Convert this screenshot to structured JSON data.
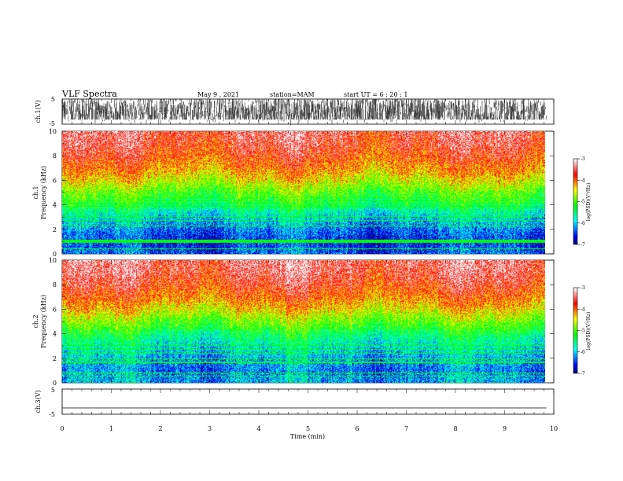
{
  "header": {
    "title": "VLF Spectra",
    "date": "May 9 , 2021",
    "station": "station=MAM",
    "start": "start  UT  =   6 : 20 : 1"
  },
  "chart_data": {
    "type": "heatmap",
    "xlabel": "Time  (min)",
    "x_ticks": [
      "0",
      "1",
      "2",
      "3",
      "4",
      "5",
      "6",
      "7",
      "8",
      "9",
      "10"
    ],
    "xlim": [
      0,
      10
    ],
    "data_end_min": 9.85,
    "panels": [
      {
        "id": "ch1_waveform",
        "type": "line",
        "ylabel": "ch.1(V)",
        "y_ticks": [
          "5",
          "-5"
        ],
        "ylim": [
          -5,
          5
        ],
        "description": "dense noise, clipped between about -3 and 5 V"
      },
      {
        "id": "ch1_spectrogram",
        "type": "heatmap",
        "ylabel_top": "ch.1",
        "ylabel": "Frequency  (kHz)",
        "y_ticks": [
          "0",
          "2",
          "4",
          "6",
          "8",
          "10"
        ],
        "ylim": [
          0,
          10
        ],
        "colorbar": {
          "label": "log(PSD)(V²/Hz)",
          "ticks": [
            "-3",
            "-4",
            "-5",
            "-6",
            "-7"
          ],
          "range": [
            -7,
            -3
          ]
        },
        "profile": {
          "note": "log PSD vs frequency (kHz)",
          "freq": [
            0,
            1,
            2,
            3,
            4,
            5,
            6,
            7,
            8,
            9,
            10
          ],
          "log_psd": [
            -6.4,
            -6.6,
            -6.3,
            -5.9,
            -5.4,
            -5.0,
            -4.5,
            -4.1,
            -3.8,
            -3.6,
            -3.5
          ]
        }
      },
      {
        "id": "ch2_spectrogram",
        "type": "heatmap",
        "ylabel_top": "ch.2",
        "ylabel": "Frequency  (kHz)",
        "y_ticks": [
          "0",
          "2",
          "4",
          "6",
          "8",
          "10"
        ],
        "ylim": [
          0,
          10
        ],
        "colorbar": {
          "label": "log(PSD)(V²/Hz)",
          "ticks": [
            "-3",
            "-4",
            "-5",
            "-6",
            "-7"
          ],
          "range": [
            -7,
            -3
          ]
        },
        "profile": {
          "note": "log PSD vs frequency (kHz)",
          "freq": [
            0,
            1,
            2,
            3,
            4,
            5,
            6,
            7,
            8,
            9,
            10
          ],
          "log_psd": [
            -6.1,
            -6.3,
            -6.1,
            -5.8,
            -5.4,
            -4.9,
            -4.4,
            -4.0,
            -3.7,
            -3.5,
            -3.4
          ]
        }
      },
      {
        "id": "ch3_waveform",
        "type": "line",
        "ylabel": "ch.3(V)",
        "y_ticks": [
          "5",
          "-5"
        ],
        "ylim": [
          -5,
          5
        ],
        "values_note": "flat line",
        "level": -2.5
      }
    ],
    "colormap": [
      "#000080",
      "#0000ff",
      "#0080ff",
      "#00ffff",
      "#00ff80",
      "#00ff00",
      "#80ff00",
      "#ffff00",
      "#ff8000",
      "#ff0000",
      "#ff8080",
      "#ffffff"
    ]
  }
}
